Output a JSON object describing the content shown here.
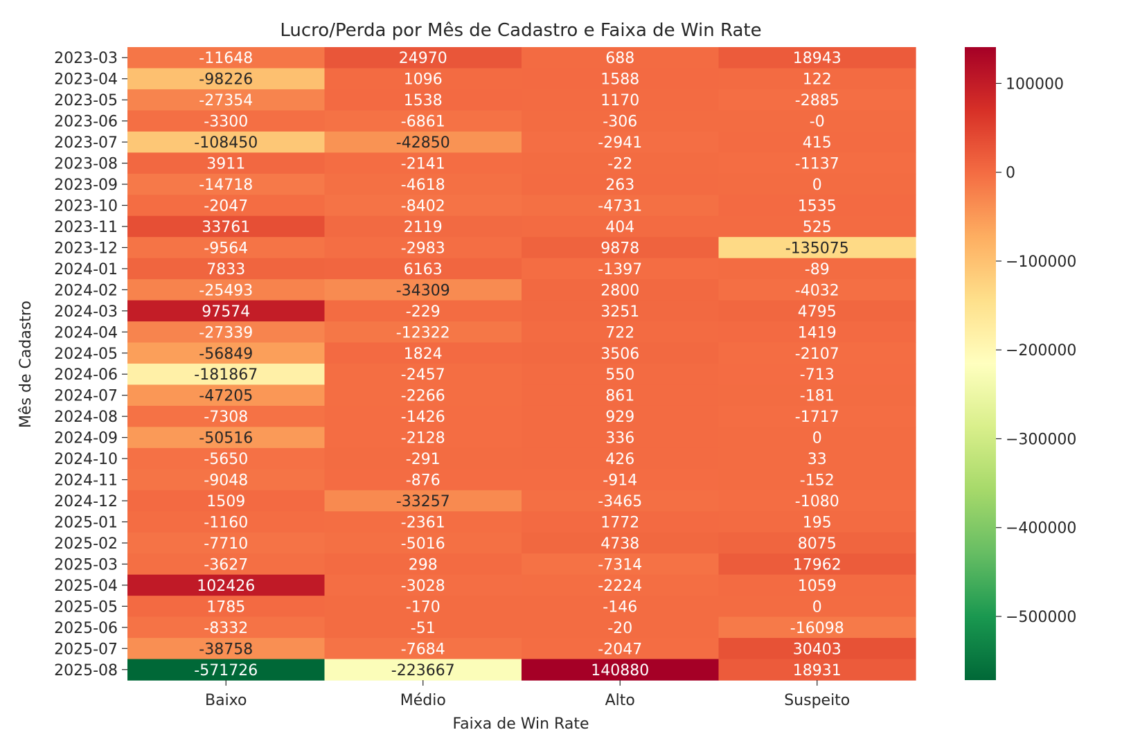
{
  "chart_data": {
    "type": "heatmap",
    "title": "Lucro/Perda por Mês de Cadastro e Faixa de Win Rate",
    "xlabel": "Faixa de Win Rate",
    "ylabel": "Mês de Cadastro",
    "x_categories": [
      "Baixo",
      "Médio",
      "Alto",
      "Suspeito"
    ],
    "y_categories": [
      "2023-03",
      "2023-04",
      "2023-05",
      "2023-06",
      "2023-07",
      "2023-08",
      "2023-09",
      "2023-10",
      "2023-11",
      "2023-12",
      "2024-01",
      "2024-02",
      "2024-03",
      "2024-04",
      "2024-05",
      "2024-06",
      "2024-07",
      "2024-08",
      "2024-09",
      "2024-10",
      "2024-11",
      "2024-12",
      "2025-01",
      "2025-02",
      "2025-03",
      "2025-04",
      "2025-05",
      "2025-06",
      "2025-07",
      "2025-08"
    ],
    "values": [
      [
        -11648,
        24970,
        688,
        18943
      ],
      [
        -98226,
        1096,
        1588,
        122
      ],
      [
        -27354,
        1538,
        1170,
        -2885
      ],
      [
        -3300,
        -6861,
        -306,
        0
      ],
      [
        -108450,
        -42850,
        -2941,
        415
      ],
      [
        3911,
        -2141,
        -22,
        -1137
      ],
      [
        -14718,
        -4618,
        263,
        0
      ],
      [
        -2047,
        -8402,
        -4731,
        1535
      ],
      [
        33761,
        2119,
        404,
        525
      ],
      [
        -9564,
        -2983,
        9878,
        -135075
      ],
      [
        7833,
        6163,
        -1397,
        -89
      ],
      [
        -25493,
        -34309,
        2800,
        -4032
      ],
      [
        97574,
        -229,
        3251,
        4795
      ],
      [
        -27339,
        -12322,
        722,
        1419
      ],
      [
        -56849,
        1824,
        3506,
        -2107
      ],
      [
        -181867,
        -2457,
        550,
        -713
      ],
      [
        -47205,
        -2266,
        861,
        -181
      ],
      [
        -7308,
        -1426,
        929,
        -1717
      ],
      [
        -50516,
        -2128,
        336,
        0
      ],
      [
        -5650,
        -291,
        426,
        33
      ],
      [
        -9048,
        -876,
        -914,
        -152
      ],
      [
        1509,
        -33257,
        -3465,
        -1080
      ],
      [
        -1160,
        -2361,
        1772,
        195
      ],
      [
        -7710,
        -5016,
        4738,
        8075
      ],
      [
        -3627,
        298,
        -7314,
        17962
      ],
      [
        102426,
        -3028,
        -2224,
        1059
      ],
      [
        1785,
        -170,
        -146,
        0
      ],
      [
        -8332,
        -51,
        -20,
        -16098
      ],
      [
        -38758,
        -7684,
        -2047,
        30403
      ],
      [
        -571726,
        -223667,
        140880,
        18931
      ]
    ],
    "cell_labels": [
      [
        "-11648",
        "24970",
        "688",
        "18943"
      ],
      [
        "-98226",
        "1096",
        "1588",
        "122"
      ],
      [
        "-27354",
        "1538",
        "1170",
        "-2885"
      ],
      [
        "-3300",
        "-6861",
        "-306",
        "-0"
      ],
      [
        "-108450",
        "-42850",
        "-2941",
        "415"
      ],
      [
        "3911",
        "-2141",
        "-22",
        "-1137"
      ],
      [
        "-14718",
        "-4618",
        "263",
        "0"
      ],
      [
        "-2047",
        "-8402",
        "-4731",
        "1535"
      ],
      [
        "33761",
        "2119",
        "404",
        "525"
      ],
      [
        "-9564",
        "-2983",
        "9878",
        "-135075"
      ],
      [
        "7833",
        "6163",
        "-1397",
        "-89"
      ],
      [
        "-25493",
        "-34309",
        "2800",
        "-4032"
      ],
      [
        "97574",
        "-229",
        "3251",
        "4795"
      ],
      [
        "-27339",
        "-12322",
        "722",
        "1419"
      ],
      [
        "-56849",
        "1824",
        "3506",
        "-2107"
      ],
      [
        "-181867",
        "-2457",
        "550",
        "-713"
      ],
      [
        "-47205",
        "-2266",
        "861",
        "-181"
      ],
      [
        "-7308",
        "-1426",
        "929",
        "-1717"
      ],
      [
        "-50516",
        "-2128",
        "336",
        "0"
      ],
      [
        "-5650",
        "-291",
        "426",
        "33"
      ],
      [
        "-9048",
        "-876",
        "-914",
        "-152"
      ],
      [
        "1509",
        "-33257",
        "-3465",
        "-1080"
      ],
      [
        "-1160",
        "-2361",
        "1772",
        "195"
      ],
      [
        "-7710",
        "-5016",
        "4738",
        "8075"
      ],
      [
        "-3627",
        "298",
        "-7314",
        "17962"
      ],
      [
        "102426",
        "-3028",
        "-2224",
        "1059"
      ],
      [
        "1785",
        "-170",
        "-146",
        "0"
      ],
      [
        "-8332",
        "-51",
        "-20",
        "-16098"
      ],
      [
        "-38758",
        "-7684",
        "-2047",
        "30403"
      ],
      [
        "-571726",
        "-223667",
        "140880",
        "18931"
      ]
    ],
    "colormap": "RdYlGn_r",
    "vmin": -571726,
    "vmax": 140880,
    "colorbar_ticks": [
      100000,
      0,
      -100000,
      -200000,
      -300000,
      -400000,
      -500000
    ],
    "colorbar_tick_labels": [
      "100000",
      "0",
      "−100000",
      "−200000",
      "−300000",
      "−400000",
      "−500000"
    ],
    "colorbar_placement": "right"
  }
}
